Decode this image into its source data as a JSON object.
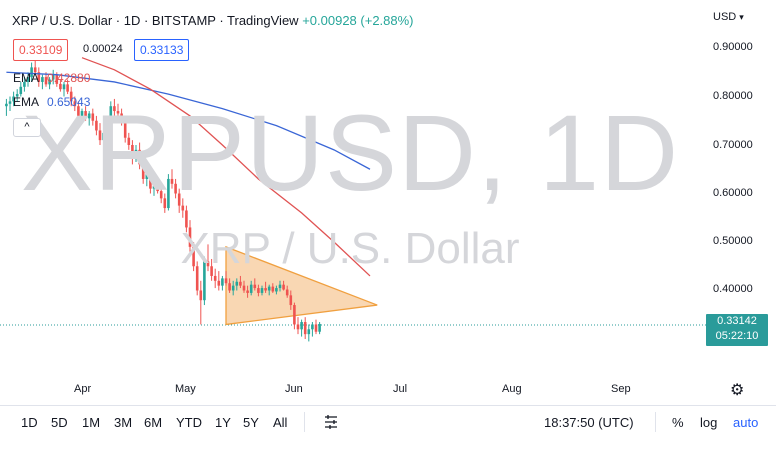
{
  "header": {
    "title": "XRP / U.S. Dollar · 1D · BITSTAMP · TradingView",
    "change": "+0.00928 (+2.88%)",
    "bid": "0.33109",
    "spread": "0.00024",
    "ask": "0.33133"
  },
  "indicators": [
    {
      "label": "EMA",
      "value": "0.42880",
      "color": "#e05353"
    },
    {
      "label": "EMA",
      "value": "0.65043",
      "color": "#3a66d6"
    }
  ],
  "collapse_glyph": "^",
  "watermark": {
    "symbol": "XRPUSD, 1D",
    "name": "XRP / U.S. Dollar"
  },
  "price_axis": {
    "currency": "USD",
    "ticks": [
      "0.90000",
      "0.80000",
      "0.70000",
      "0.60000",
      "0.50000",
      "0.40000"
    ],
    "last_price": "0.33142",
    "countdown": "05:22:10"
  },
  "time_axis": {
    "ticks": [
      "Apr",
      "May",
      "Jun",
      "Jul",
      "Aug",
      "Sep"
    ]
  },
  "toolbar": {
    "timeframes": [
      "1D",
      "5D",
      "1M",
      "3M",
      "6M",
      "YTD",
      "1Y",
      "5Y",
      "All"
    ],
    "clock": "18:37:50 (UTC)",
    "percent": "%",
    "log": "log",
    "auto": "auto"
  },
  "colors": {
    "up": "#26a69a",
    "down": "#ef5350",
    "ema_fast": "#e05353",
    "ema_slow": "#3a66d6",
    "triangle_fill": "#f7c99a",
    "triangle_stroke": "#f0a040",
    "last_line": "#2a9b9a"
  },
  "chart_data": {
    "type": "candlestick",
    "symbol": "XRPUSD",
    "interval": "1D",
    "ylim": [
      0.27,
      0.93
    ],
    "y_ticks": [
      0.9,
      0.8,
      0.7,
      0.6,
      0.5,
      0.4
    ],
    "x_ticks": [
      {
        "label": "Apr",
        "date": "2022-04-01"
      },
      {
        "label": "May",
        "date": "2022-05-01"
      },
      {
        "label": "Jun",
        "date": "2022-06-01"
      },
      {
        "label": "Jul",
        "date": "2022-07-01"
      },
      {
        "label": "Aug",
        "date": "2022-08-01"
      },
      {
        "label": "Sep",
        "date": "2022-09-01"
      }
    ],
    "start_date": "2022-03-11",
    "ohlc": [
      [
        0.78,
        0.795,
        0.76,
        0.785
      ],
      [
        0.785,
        0.8,
        0.77,
        0.79
      ],
      [
        0.79,
        0.81,
        0.78,
        0.8
      ],
      [
        0.8,
        0.815,
        0.79,
        0.805
      ],
      [
        0.805,
        0.83,
        0.8,
        0.82
      ],
      [
        0.82,
        0.84,
        0.81,
        0.83
      ],
      [
        0.83,
        0.85,
        0.82,
        0.84
      ],
      [
        0.84,
        0.87,
        0.83,
        0.86
      ],
      [
        0.86,
        0.88,
        0.845,
        0.85
      ],
      [
        0.85,
        0.86,
        0.82,
        0.83
      ],
      [
        0.83,
        0.845,
        0.815,
        0.84
      ],
      [
        0.84,
        0.85,
        0.82,
        0.825
      ],
      [
        0.825,
        0.84,
        0.815,
        0.835
      ],
      [
        0.835,
        0.855,
        0.825,
        0.845
      ],
      [
        0.845,
        0.85,
        0.82,
        0.826
      ],
      [
        0.826,
        0.835,
        0.81,
        0.815
      ],
      [
        0.815,
        0.83,
        0.8,
        0.825
      ],
      [
        0.825,
        0.835,
        0.805,
        0.81
      ],
      [
        0.81,
        0.82,
        0.78,
        0.79
      ],
      [
        0.79,
        0.8,
        0.77,
        0.78
      ],
      [
        0.78,
        0.79,
        0.755,
        0.76
      ],
      [
        0.76,
        0.775,
        0.745,
        0.77
      ],
      [
        0.77,
        0.78,
        0.75,
        0.755
      ],
      [
        0.755,
        0.77,
        0.74,
        0.765
      ],
      [
        0.765,
        0.775,
        0.74,
        0.75
      ],
      [
        0.75,
        0.76,
        0.72,
        0.73
      ],
      [
        0.73,
        0.745,
        0.7,
        0.71
      ],
      [
        0.71,
        0.735,
        0.7,
        0.725
      ],
      [
        0.725,
        0.76,
        0.72,
        0.75
      ],
      [
        0.75,
        0.79,
        0.745,
        0.78
      ],
      [
        0.78,
        0.795,
        0.76,
        0.77
      ],
      [
        0.77,
        0.785,
        0.755,
        0.765
      ],
      [
        0.765,
        0.775,
        0.74,
        0.745
      ],
      [
        0.745,
        0.76,
        0.705,
        0.715
      ],
      [
        0.715,
        0.725,
        0.69,
        0.7
      ],
      [
        0.7,
        0.71,
        0.66,
        0.675
      ],
      [
        0.675,
        0.7,
        0.665,
        0.69
      ],
      [
        0.69,
        0.705,
        0.65,
        0.66
      ],
      [
        0.66,
        0.67,
        0.62,
        0.63
      ],
      [
        0.63,
        0.65,
        0.615,
        0.64
      ],
      [
        0.64,
        0.65,
        0.6,
        0.61
      ],
      [
        0.61,
        0.625,
        0.595,
        0.615
      ],
      [
        0.615,
        0.63,
        0.6,
        0.605
      ],
      [
        0.605,
        0.615,
        0.58,
        0.59
      ],
      [
        0.59,
        0.6,
        0.56,
        0.57
      ],
      [
        0.57,
        0.64,
        0.565,
        0.63
      ],
      [
        0.63,
        0.65,
        0.61,
        0.62
      ],
      [
        0.62,
        0.63,
        0.59,
        0.6
      ],
      [
        0.6,
        0.61,
        0.56,
        0.575
      ],
      [
        0.575,
        0.59,
        0.55,
        0.565
      ],
      [
        0.565,
        0.575,
        0.52,
        0.53
      ],
      [
        0.53,
        0.545,
        0.48,
        0.49
      ],
      [
        0.49,
        0.5,
        0.44,
        0.45
      ],
      [
        0.45,
        0.46,
        0.39,
        0.4
      ],
      [
        0.4,
        0.42,
        0.33,
        0.38
      ],
      [
        0.38,
        0.47,
        0.37,
        0.46
      ],
      [
        0.46,
        0.495,
        0.44,
        0.45
      ],
      [
        0.45,
        0.465,
        0.42,
        0.43
      ],
      [
        0.43,
        0.445,
        0.405,
        0.42
      ],
      [
        0.42,
        0.44,
        0.4,
        0.41
      ],
      [
        0.41,
        0.43,
        0.4,
        0.425
      ],
      [
        0.425,
        0.44,
        0.41,
        0.415
      ],
      [
        0.415,
        0.425,
        0.395,
        0.4
      ],
      [
        0.4,
        0.42,
        0.39,
        0.41
      ],
      [
        0.41,
        0.425,
        0.4,
        0.418
      ],
      [
        0.418,
        0.43,
        0.405,
        0.41
      ],
      [
        0.41,
        0.42,
        0.395,
        0.4
      ],
      [
        0.4,
        0.41,
        0.385,
        0.395
      ],
      [
        0.395,
        0.42,
        0.39,
        0.412
      ],
      [
        0.412,
        0.425,
        0.4,
        0.405
      ],
      [
        0.405,
        0.412,
        0.388,
        0.395
      ],
      [
        0.395,
        0.41,
        0.39,
        0.405
      ],
      [
        0.405,
        0.418,
        0.395,
        0.4
      ],
      [
        0.4,
        0.412,
        0.39,
        0.408
      ],
      [
        0.408,
        0.415,
        0.395,
        0.398
      ],
      [
        0.398,
        0.41,
        0.392,
        0.405
      ],
      [
        0.405,
        0.42,
        0.398,
        0.412
      ],
      [
        0.412,
        0.42,
        0.4,
        0.402
      ],
      [
        0.402,
        0.41,
        0.385,
        0.39
      ],
      [
        0.39,
        0.4,
        0.36,
        0.37
      ],
      [
        0.37,
        0.375,
        0.32,
        0.33
      ],
      [
        0.33,
        0.345,
        0.31,
        0.32
      ],
      [
        0.32,
        0.34,
        0.305,
        0.335
      ],
      [
        0.335,
        0.345,
        0.3,
        0.31
      ],
      [
        0.31,
        0.33,
        0.295,
        0.32
      ],
      [
        0.32,
        0.335,
        0.305,
        0.33
      ],
      [
        0.33,
        0.34,
        0.31,
        0.315
      ],
      [
        0.315,
        0.335,
        0.31,
        0.331
      ]
    ],
    "ema_fast": [
      [
        "2022-04-01",
        0.88
      ],
      [
        "2022-04-10",
        0.855
      ],
      [
        "2022-04-20",
        0.815
      ],
      [
        "2022-05-01",
        0.76
      ],
      [
        "2022-05-10",
        0.7
      ],
      [
        "2022-05-20",
        0.63
      ],
      [
        "2022-06-01",
        0.56
      ],
      [
        "2022-06-10",
        0.5
      ],
      [
        "2022-06-20",
        0.43
      ]
    ],
    "ema_slow": [
      [
        "2022-03-11",
        0.85
      ],
      [
        "2022-03-25",
        0.845
      ],
      [
        "2022-04-10",
        0.83
      ],
      [
        "2022-04-25",
        0.805
      ],
      [
        "2022-05-10",
        0.775
      ],
      [
        "2022-05-25",
        0.74
      ],
      [
        "2022-06-10",
        0.69
      ],
      [
        "2022-06-20",
        0.65
      ]
    ],
    "triangle": [
      [
        "2022-05-11",
        0.49
      ],
      [
        "2022-06-22",
        0.37
      ],
      [
        "2022-05-11",
        0.33
      ]
    ],
    "last_price": 0.33142
  }
}
